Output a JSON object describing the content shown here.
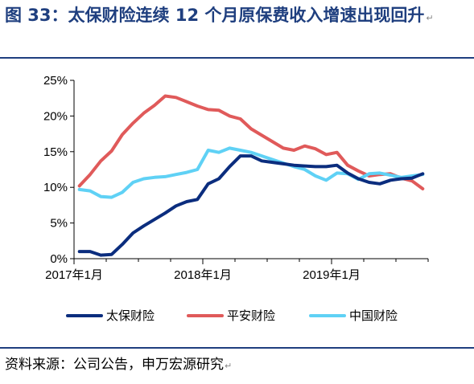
{
  "figure": {
    "title": "图 33：太保财险连续 12 个月原保费收入增速出现回升",
    "source": "资料来源：公司公告，申万宏源研究"
  },
  "chart_data": {
    "type": "line",
    "title": "",
    "xlabel": "",
    "ylabel": "",
    "ylim": [
      0,
      25
    ],
    "yticks": [
      "0%",
      "5%",
      "10%",
      "15%",
      "20%",
      "25%"
    ],
    "x_tick_labels": [
      "2017年1月",
      "2018年1月",
      "2019年1月"
    ],
    "x_tick_index": [
      0,
      12,
      24
    ],
    "grid": false,
    "legend_position": "bottom",
    "colors": {
      "太保财险": "#0b2d7e",
      "平安财险": "#e05a5a",
      "中国财险": "#5fd1f5"
    },
    "x": [
      "2017-01",
      "2017-02",
      "2017-03",
      "2017-04",
      "2017-05",
      "2017-06",
      "2017-07",
      "2017-08",
      "2017-09",
      "2017-10",
      "2017-11",
      "2017-12",
      "2018-01",
      "2018-02",
      "2018-03",
      "2018-04",
      "2018-05",
      "2018-06",
      "2018-07",
      "2018-08",
      "2018-09",
      "2018-10",
      "2018-11",
      "2018-12",
      "2019-01",
      "2019-02",
      "2019-03",
      "2019-04",
      "2019-05",
      "2019-06",
      "2019-07",
      "2019-08",
      "2019-09"
    ],
    "series": [
      {
        "name": "太保财险",
        "values": [
          1.0,
          1.0,
          0.5,
          0.6,
          2.0,
          3.6,
          4.6,
          5.5,
          6.4,
          7.4,
          8.0,
          8.3,
          10.5,
          11.2,
          12.9,
          14.4,
          14.4,
          13.7,
          13.5,
          13.3,
          13.1,
          13.0,
          12.9,
          12.9,
          13.1,
          12.0,
          11.2,
          10.7,
          10.5,
          11.0,
          11.2,
          11.3,
          11.9
        ]
      },
      {
        "name": "平安财险",
        "values": [
          10.2,
          11.8,
          13.7,
          15.1,
          17.4,
          19.0,
          20.4,
          21.5,
          22.8,
          22.6,
          22.0,
          21.4,
          20.9,
          20.8,
          20.0,
          19.6,
          18.2,
          17.3,
          16.4,
          15.5,
          15.2,
          15.8,
          15.4,
          14.6,
          14.9,
          13.1,
          12.3,
          11.6,
          11.8,
          11.9,
          11.3,
          10.9,
          9.8
        ]
      },
      {
        "name": "中国财险",
        "values": [
          9.7,
          9.5,
          8.7,
          8.6,
          9.3,
          10.7,
          11.2,
          11.4,
          11.5,
          11.8,
          12.1,
          12.5,
          15.2,
          14.9,
          15.5,
          15.2,
          14.9,
          14.4,
          13.9,
          13.4,
          12.9,
          12.5,
          11.6,
          11.0,
          12.0,
          11.9,
          11.1,
          11.9,
          12.0,
          11.7,
          11.4,
          11.6,
          11.8
        ]
      }
    ]
  }
}
